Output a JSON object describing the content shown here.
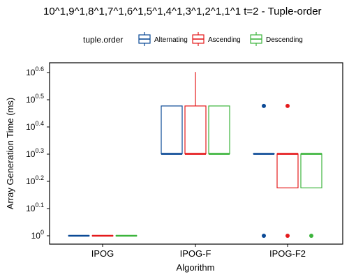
{
  "chart_data": {
    "type": "boxplot",
    "title": "10^1,9^1,8^1,7^1,6^1,5^1,4^1,3^1,2^1,1^1 t=2 - Tuple-order",
    "xlabel": "Algorithm",
    "ylabel": "Array Generation Time (ms)",
    "y_scale": "log10",
    "ylim_exponent": [
      0,
      0.6
    ],
    "y_ticks": [
      {
        "exp": 0,
        "label_base": "10",
        "label_exp": "0"
      },
      {
        "exp": 0.1,
        "label_base": "10",
        "label_exp": "0.1"
      },
      {
        "exp": 0.2,
        "label_base": "10",
        "label_exp": "0.2"
      },
      {
        "exp": 0.3,
        "label_base": "10",
        "label_exp": "0.3"
      },
      {
        "exp": 0.4,
        "label_base": "10",
        "label_exp": "0.4"
      },
      {
        "exp": 0.5,
        "label_base": "10",
        "label_exp": "0.5"
      },
      {
        "exp": 0.6,
        "label_base": "10",
        "label_exp": "0.6"
      }
    ],
    "categories": [
      "IPOG",
      "IPOG-F",
      "IPOG-F2"
    ],
    "legend": {
      "title": "tuple.order",
      "position": "top"
    },
    "grid": false,
    "series": [
      {
        "name": "Alternating",
        "color": "#0b4a96",
        "boxes": [
          {
            "category": "IPOG",
            "min": 1,
            "q1": 1,
            "median": 1,
            "q3": 1,
            "max": 1,
            "outliers": []
          },
          {
            "category": "IPOG-F",
            "min": 2,
            "q1": 2,
            "median": 2,
            "q3": 3,
            "max": 3,
            "outliers": []
          },
          {
            "category": "IPOG-F2",
            "min": 2,
            "q1": 2,
            "median": 2,
            "q3": 2,
            "max": 2,
            "outliers": [
              1,
              3
            ]
          }
        ]
      },
      {
        "name": "Ascending",
        "color": "#e41a1c",
        "boxes": [
          {
            "category": "IPOG",
            "min": 1,
            "q1": 1,
            "median": 1,
            "q3": 1,
            "max": 1,
            "outliers": []
          },
          {
            "category": "IPOG-F",
            "min": 2,
            "q1": 2,
            "median": 2,
            "q3": 3,
            "max": 4,
            "outliers": []
          },
          {
            "category": "IPOG-F2",
            "min": 1.5,
            "q1": 1.5,
            "median": 2,
            "q3": 2,
            "max": 2,
            "outliers": [
              1,
              3
            ]
          }
        ]
      },
      {
        "name": "Descending",
        "color": "#3cb43c",
        "boxes": [
          {
            "category": "IPOG",
            "min": 1,
            "q1": 1,
            "median": 1,
            "q3": 1,
            "max": 1,
            "outliers": []
          },
          {
            "category": "IPOG-F",
            "min": 2,
            "q1": 2,
            "median": 2,
            "q3": 3,
            "max": 3,
            "outliers": []
          },
          {
            "category": "IPOG-F2",
            "min": 1.5,
            "q1": 1.5,
            "median": 2,
            "q3": 2,
            "max": 2,
            "outliers": [
              1
            ]
          }
        ]
      }
    ]
  }
}
